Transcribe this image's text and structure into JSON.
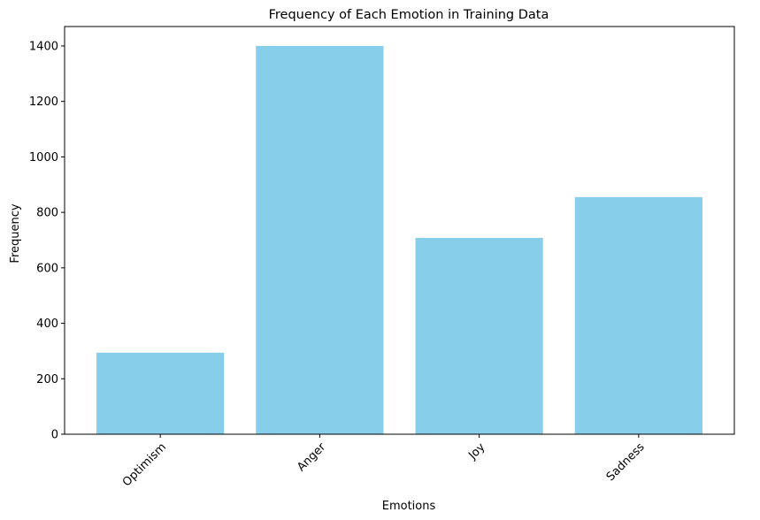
{
  "chart_data": {
    "type": "bar",
    "title": "Frequency of Each Emotion in Training Data",
    "xlabel": "Emotions",
    "ylabel": "Frequency",
    "categories": [
      "Optimism",
      "Anger",
      "Joy",
      "Sadness"
    ],
    "values": [
      294,
      1400,
      708,
      855
    ],
    "ylim": [
      0,
      1470
    ],
    "yticks": [
      0,
      200,
      400,
      600,
      800,
      1000,
      1200,
      1400
    ],
    "xtick_rotation_degrees": 45,
    "grid": false,
    "legend": "none",
    "bar_color": "#87ceeb"
  }
}
